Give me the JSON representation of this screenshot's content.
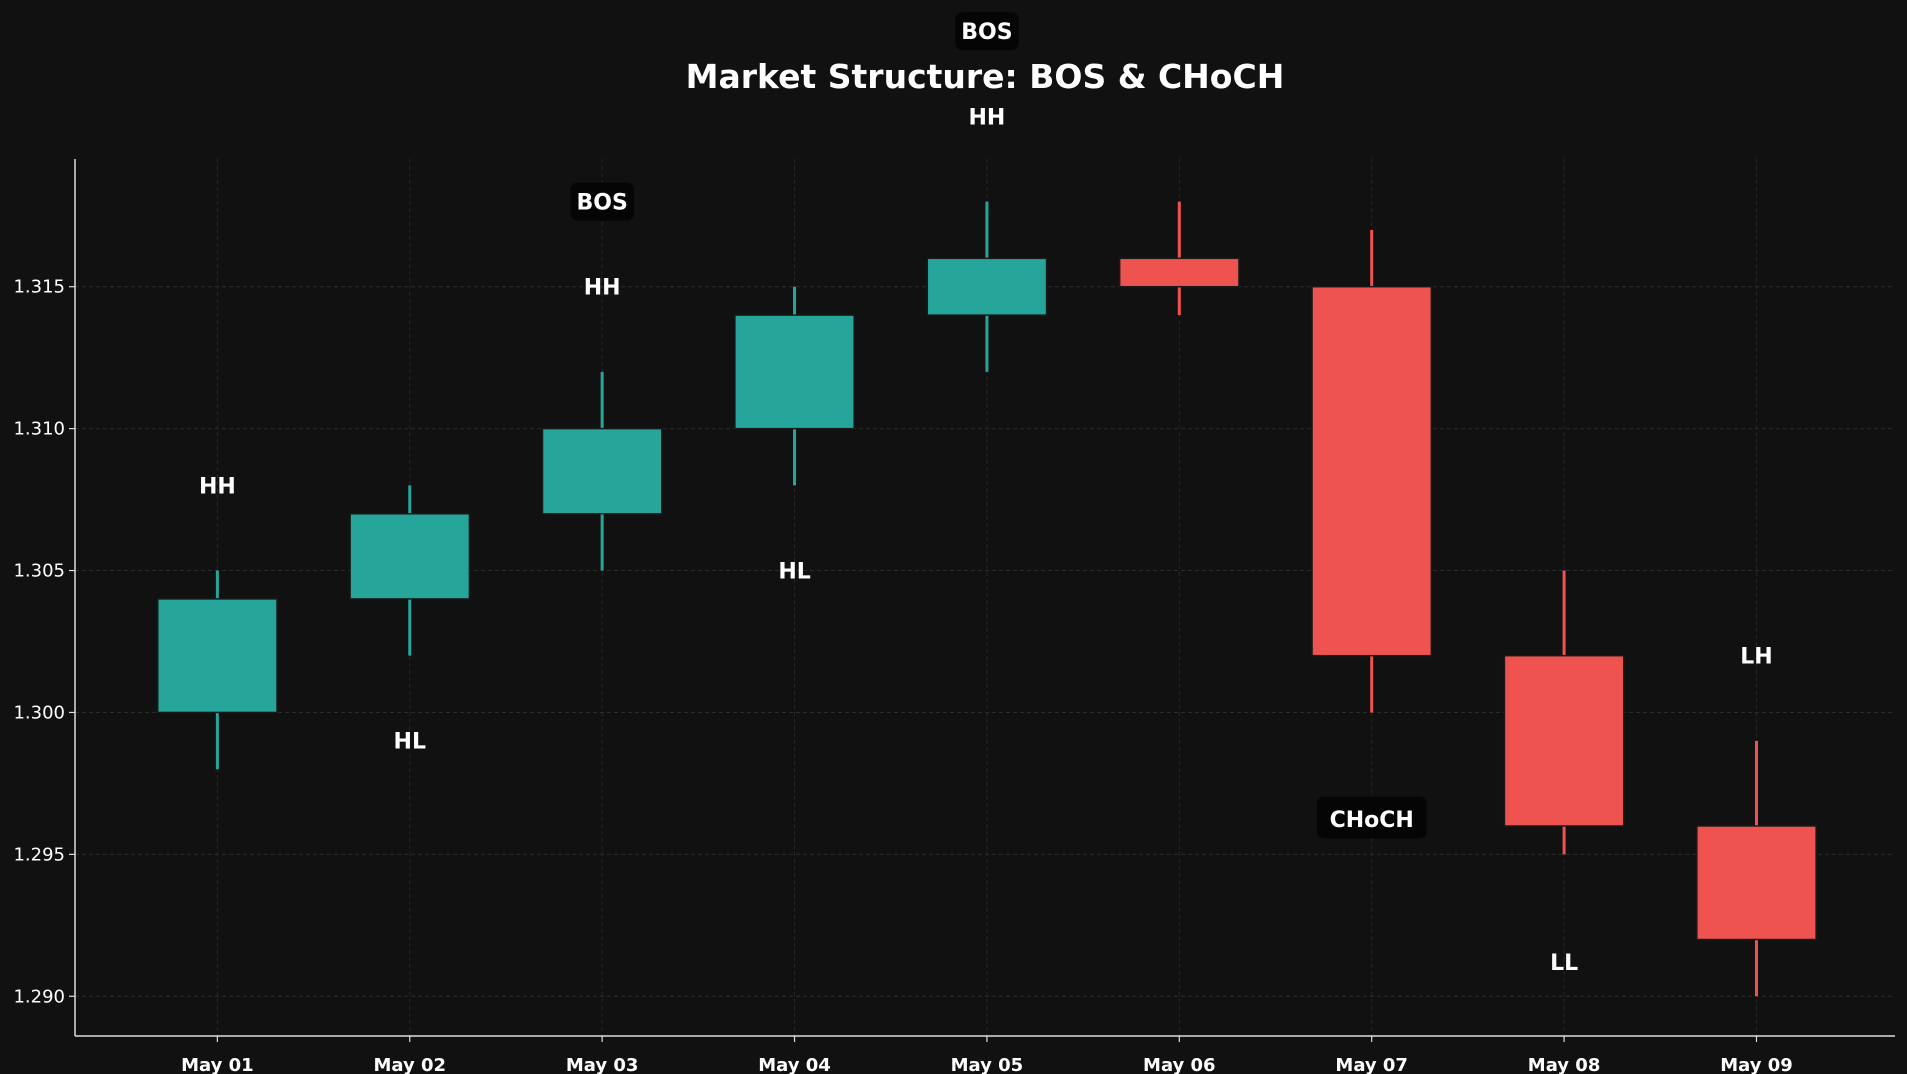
{
  "chart_data": {
    "type": "candlestick",
    "title": "Market Structure: BOS & CHoCH",
    "xlabel": "",
    "ylabel": "",
    "categories": [
      "May 01",
      "May 02",
      "May 03",
      "May 04",
      "May 05",
      "May 06",
      "May 07",
      "May 08",
      "May 09"
    ],
    "ohlc": [
      {
        "open": 1.3,
        "high": 1.305,
        "low": 1.298,
        "close": 1.304
      },
      {
        "open": 1.304,
        "high": 1.308,
        "low": 1.302,
        "close": 1.307
      },
      {
        "open": 1.307,
        "high": 1.312,
        "low": 1.305,
        "close": 1.31
      },
      {
        "open": 1.31,
        "high": 1.315,
        "low": 1.308,
        "close": 1.314
      },
      {
        "open": 1.314,
        "high": 1.318,
        "low": 1.312,
        "close": 1.316
      },
      {
        "open": 1.316,
        "high": 1.318,
        "low": 1.314,
        "close": 1.315
      },
      {
        "open": 1.315,
        "high": 1.317,
        "low": 1.3,
        "close": 1.302
      },
      {
        "open": 1.302,
        "high": 1.305,
        "low": 1.295,
        "close": 1.296
      },
      {
        "open": 1.296,
        "high": 1.299,
        "low": 1.29,
        "close": 1.292
      }
    ],
    "ylim": [
      1.2886,
      1.3195
    ],
    "yticks": [
      "1.290",
      "1.295",
      "1.300",
      "1.305",
      "1.310",
      "1.315"
    ],
    "grid": true,
    "annotations": [
      {
        "text": "HH",
        "x": "May 01",
        "y": 1.308,
        "boxed": false
      },
      {
        "text": "HL",
        "x": "May 02",
        "y": 1.299,
        "boxed": false
      },
      {
        "text": "HH",
        "x": "May 03",
        "y": 1.315,
        "boxed": false
      },
      {
        "text": "BOS",
        "x": "May 03",
        "y": 1.318,
        "boxed": true
      },
      {
        "text": "HL",
        "x": "May 04",
        "y": 1.305,
        "boxed": false
      },
      {
        "text": "HH",
        "x": "May 05",
        "y": 1.321,
        "boxed": false
      },
      {
        "text": "BOS",
        "x": "May 05",
        "y": 1.324,
        "boxed": true
      },
      {
        "text": "CHoCH",
        "x": "May 07",
        "y": 1.2963,
        "boxed": true,
        "large": true
      },
      {
        "text": "LL",
        "x": "May 08",
        "y": 1.2912,
        "boxed": false
      },
      {
        "text": "LH",
        "x": "May 09",
        "y": 1.302,
        "boxed": false
      }
    ],
    "colors": {
      "background": "#111111",
      "bullish": "#26a69a",
      "bearish": "#ef5350",
      "text": "#ffffff",
      "label_box": "#050505"
    }
  }
}
